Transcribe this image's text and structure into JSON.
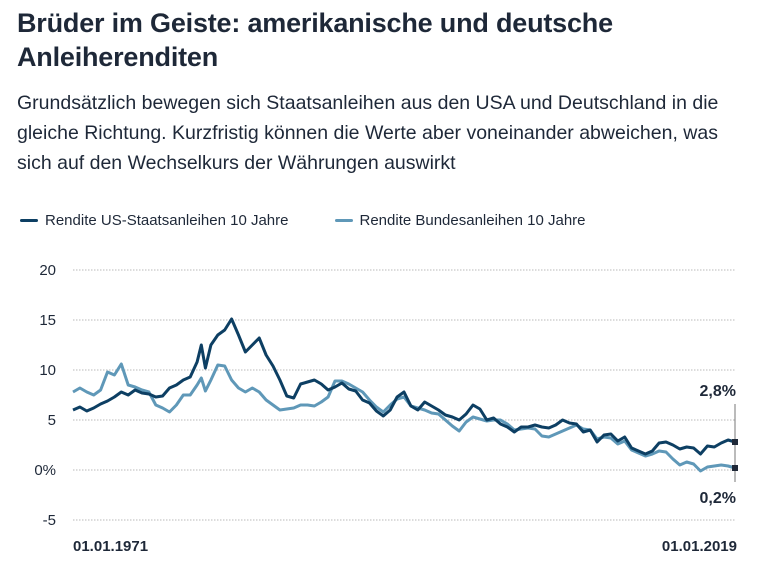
{
  "header": {
    "title": "Brüder im Geiste: amerikanische und deutsche Anleiherenditen",
    "subtitle": "Grundsätzlich bewegen sich Staatsanleihen aus den USA und Deutschland in die gleiche Richtung. Kurzfristig können die Werte aber voneinander abweichen, was sich auf den Wechselkurs der Währungen auswirkt"
  },
  "legend": [
    {
      "label": "Rendite US-Staatsanleihen 10 Jahre",
      "color": "#0d3f63"
    },
    {
      "label": "Rendite Bundesanleihen 10 Jahre",
      "color": "#5f98b8"
    }
  ],
  "chart_data": {
    "type": "line",
    "title": "Brüder im Geiste: amerikanische und deutsche Anleiherenditen",
    "xlabel": "",
    "ylabel": "",
    "xlim": [
      1971,
      2019
    ],
    "ylim": [
      -5,
      20
    ],
    "grid": true,
    "legend_position": "top-left",
    "y_ticks": [
      20,
      15,
      10,
      5,
      0,
      -5
    ],
    "y_tick_labels": [
      "20",
      "15",
      "10",
      "5",
      "0%",
      "-5"
    ],
    "x_tick_labels": [
      "01.01.1971",
      "01.01.2019"
    ],
    "x": [
      1971.0,
      1971.5,
      1972.0,
      1972.5,
      1973.0,
      1973.5,
      1974.0,
      1974.5,
      1975.0,
      1975.5,
      1976.0,
      1976.5,
      1977.0,
      1977.5,
      1978.0,
      1978.5,
      1979.0,
      1979.5,
      1980.0,
      1980.3,
      1980.6,
      1981.0,
      1981.5,
      1982.0,
      1982.5,
      1983.0,
      1983.5,
      1984.0,
      1984.5,
      1985.0,
      1985.5,
      1986.0,
      1986.5,
      1987.0,
      1987.5,
      1988.0,
      1988.5,
      1989.0,
      1989.5,
      1990.0,
      1990.5,
      1991.0,
      1991.5,
      1992.0,
      1992.5,
      1993.0,
      1993.5,
      1994.0,
      1994.5,
      1995.0,
      1995.5,
      1996.0,
      1996.5,
      1997.0,
      1997.5,
      1998.0,
      1998.5,
      1999.0,
      1999.5,
      2000.0,
      2000.5,
      2001.0,
      2001.5,
      2002.0,
      2002.5,
      2003.0,
      2003.5,
      2004.0,
      2004.5,
      2005.0,
      2005.5,
      2006.0,
      2006.5,
      2007.0,
      2007.5,
      2008.0,
      2008.5,
      2009.0,
      2009.5,
      2010.0,
      2010.5,
      2011.0,
      2011.5,
      2012.0,
      2012.5,
      2013.0,
      2013.5,
      2014.0,
      2014.5,
      2015.0,
      2015.5,
      2016.0,
      2016.5,
      2017.0,
      2017.5,
      2018.0,
      2018.5,
      2019.0
    ],
    "series": [
      {
        "name": "Rendite US-Staatsanleihen 10 Jahre",
        "color": "#0d3f63",
        "end_label": "2,8%",
        "values": [
          6.0,
          6.3,
          5.9,
          6.2,
          6.6,
          6.9,
          7.3,
          7.8,
          7.5,
          8.0,
          7.7,
          7.6,
          7.3,
          7.4,
          8.2,
          8.5,
          9.0,
          9.3,
          10.8,
          12.5,
          10.2,
          12.5,
          13.5,
          14.0,
          15.1,
          13.5,
          11.8,
          12.5,
          13.2,
          11.5,
          10.4,
          9.0,
          7.4,
          7.2,
          8.6,
          8.8,
          9.0,
          8.6,
          8.0,
          8.3,
          8.7,
          8.1,
          7.9,
          7.0,
          6.7,
          5.9,
          5.4,
          6.0,
          7.3,
          7.8,
          6.4,
          6.0,
          6.8,
          6.4,
          6.0,
          5.5,
          5.3,
          5.0,
          5.6,
          6.5,
          6.1,
          5.0,
          5.2,
          4.6,
          4.3,
          3.8,
          4.3,
          4.3,
          4.5,
          4.3,
          4.2,
          4.5,
          5.0,
          4.7,
          4.6,
          3.8,
          4.0,
          2.8,
          3.5,
          3.6,
          2.9,
          3.3,
          2.2,
          1.9,
          1.6,
          1.9,
          2.7,
          2.8,
          2.5,
          2.1,
          2.3,
          2.2,
          1.6,
          2.4,
          2.3,
          2.7,
          3.0,
          2.8
        ]
      },
      {
        "name": "Rendite Bundesanleihen 10 Jahre",
        "color": "#5f98b8",
        "end_label": "0,2%",
        "values": [
          7.8,
          8.2,
          7.8,
          7.5,
          8.0,
          9.8,
          9.5,
          10.6,
          8.5,
          8.3,
          8.0,
          7.8,
          6.5,
          6.2,
          5.8,
          6.5,
          7.5,
          7.5,
          8.5,
          9.2,
          7.9,
          9.0,
          10.5,
          10.4,
          9.0,
          8.2,
          7.8,
          8.2,
          7.8,
          7.0,
          6.5,
          6.0,
          6.1,
          6.2,
          6.5,
          6.5,
          6.4,
          6.8,
          7.3,
          8.9,
          8.9,
          8.6,
          8.2,
          7.8,
          7.0,
          6.3,
          5.8,
          6.5,
          7.1,
          7.3,
          6.4,
          6.2,
          6.0,
          5.7,
          5.6,
          5.0,
          4.4,
          3.9,
          4.8,
          5.3,
          5.1,
          4.9,
          5.0,
          5.0,
          4.6,
          4.0,
          4.1,
          4.2,
          4.1,
          3.4,
          3.3,
          3.6,
          3.9,
          4.2,
          4.5,
          4.1,
          4.0,
          3.1,
          3.3,
          3.2,
          2.6,
          2.9,
          2.0,
          1.7,
          1.4,
          1.6,
          1.9,
          1.8,
          1.1,
          0.5,
          0.8,
          0.6,
          -0.1,
          0.3,
          0.4,
          0.5,
          0.4,
          0.2
        ]
      }
    ]
  }
}
